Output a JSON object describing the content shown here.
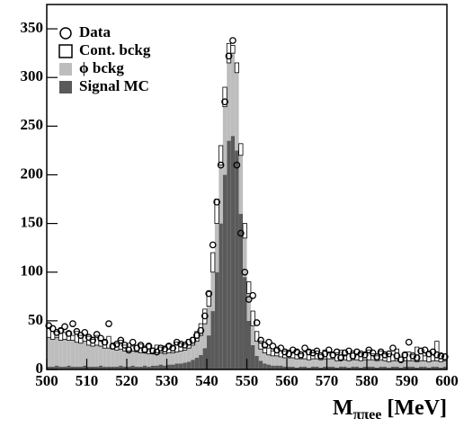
{
  "chart_data": {
    "type": "histogram",
    "x_label": {
      "main": "M",
      "sub": "ππee",
      "unit": "[MeV]"
    },
    "bins": [
      500,
      501,
      502,
      503,
      504,
      505,
      506,
      507,
      508,
      509,
      510,
      511,
      512,
      513,
      514,
      515,
      516,
      517,
      518,
      519,
      520,
      521,
      522,
      523,
      524,
      525,
      526,
      527,
      528,
      529,
      530,
      531,
      532,
      533,
      534,
      535,
      536,
      537,
      538,
      539,
      540,
      541,
      542,
      543,
      544,
      545,
      546,
      547,
      548,
      549,
      550,
      551,
      552,
      553,
      554,
      555,
      556,
      557,
      558,
      559,
      560,
      561,
      562,
      563,
      564,
      565,
      566,
      567,
      568,
      569,
      570,
      571,
      572,
      573,
      574,
      575,
      576,
      577,
      578,
      579,
      580,
      581,
      582,
      583,
      584,
      585,
      586,
      587,
      588,
      589,
      590,
      591,
      592,
      593,
      594,
      595,
      596,
      597,
      598,
      599,
      600
    ],
    "series": [
      {
        "name": "Signal MC",
        "color": "#5a5a5a",
        "style": "stack",
        "values": [
          3,
          3,
          4,
          3,
          3,
          4,
          3,
          3,
          3,
          4,
          3,
          3,
          3,
          4,
          3,
          3,
          3,
          3,
          4,
          3,
          3,
          4,
          3,
          3,
          4,
          3,
          4,
          4,
          5,
          4,
          5,
          5,
          6,
          6,
          7,
          8,
          10,
          12,
          15,
          22,
          35,
          60,
          100,
          150,
          200,
          235,
          240,
          225,
          160,
          95,
          50,
          25,
          14,
          9,
          6,
          5,
          4,
          4,
          4,
          3,
          3,
          3,
          2,
          3,
          3,
          2,
          3,
          3,
          2,
          3,
          3,
          3,
          2,
          3,
          3,
          2,
          3,
          3,
          2,
          3,
          3,
          3,
          2,
          3,
          3,
          2,
          3,
          3,
          2,
          3,
          3,
          3,
          2,
          3,
          3,
          2,
          3,
          3,
          2,
          3
        ]
      },
      {
        "name": "ϕ bckg",
        "color": "#bdbdbd",
        "style": "stack",
        "values": [
          30,
          28,
          29,
          27,
          28,
          26,
          27,
          25,
          24,
          25,
          22,
          21,
          22,
          20,
          19,
          19,
          18,
          17,
          17,
          16,
          16,
          15,
          15,
          14,
          14,
          13,
          13,
          13,
          12,
          12,
          12,
          12,
          12,
          13,
          13,
          14,
          15,
          17,
          20,
          25,
          30,
          40,
          50,
          60,
          70,
          80,
          85,
          80,
          60,
          40,
          28,
          20,
          15,
          12,
          11,
          10,
          10,
          10,
          9,
          9,
          9,
          9,
          9,
          8,
          8,
          8,
          8,
          8,
          8,
          8,
          8,
          8,
          7,
          7,
          7,
          7,
          7,
          7,
          7,
          7,
          7,
          7,
          7,
          7,
          6,
          6,
          6,
          6,
          6,
          6,
          6,
          6,
          6,
          6,
          6,
          6,
          6,
          6,
          6,
          6
        ]
      },
      {
        "name": "Cont. bckg",
        "color": "#ffffff",
        "style": "stack",
        "values": [
          10,
          8,
          6,
          12,
          7,
          9,
          5,
          11,
          8,
          6,
          9,
          7,
          10,
          6,
          8,
          12,
          5,
          7,
          9,
          6,
          8,
          5,
          7,
          9,
          6,
          10,
          5,
          8,
          6,
          7,
          9,
          7,
          10,
          8,
          6,
          9,
          8,
          10,
          12,
          15,
          15,
          20,
          25,
          20,
          20,
          20,
          8,
          10,
          12,
          15,
          12,
          15,
          10,
          8,
          6,
          7,
          5,
          8,
          6,
          7,
          8,
          6,
          9,
          5,
          7,
          10,
          6,
          8,
          5,
          9,
          7,
          6,
          8,
          10,
          5,
          7,
          9,
          6,
          8,
          7,
          10,
          6,
          5,
          9,
          7,
          8,
          6,
          12,
          5,
          8,
          9,
          6,
          15,
          7,
          5,
          10,
          6,
          20,
          8,
          7
        ]
      },
      {
        "name": "Data",
        "color": "#000000",
        "style": "points",
        "values": [
          45,
          42,
          38,
          40,
          44,
          37,
          47,
          39,
          35,
          38,
          33,
          30,
          36,
          32,
          28,
          47,
          24,
          26,
          30,
          25,
          20,
          28,
          22,
          25,
          20,
          24,
          19,
          18,
          22,
          21,
          24,
          22,
          28,
          26,
          25,
          28,
          30,
          35,
          40,
          55,
          78,
          128,
          172,
          210,
          275,
          322,
          338,
          210,
          140,
          100,
          72,
          76,
          48,
          30,
          25,
          28,
          24,
          20,
          22,
          18,
          16,
          20,
          18,
          15,
          22,
          18,
          17,
          19,
          14,
          16,
          20,
          15,
          18,
          12,
          17,
          19,
          14,
          18,
          16,
          15,
          20,
          17,
          13,
          18,
          15,
          16,
          22,
          14,
          10,
          15,
          28,
          14,
          12,
          19,
          20,
          16,
          18,
          15,
          14,
          13
        ]
      }
    ],
    "xlim": [
      500,
      600
    ],
    "ylim": [
      0,
      375
    ],
    "xticks": [
      500,
      510,
      520,
      530,
      540,
      550,
      560,
      570,
      580,
      590,
      600
    ],
    "yticks": [
      0,
      50,
      100,
      150,
      200,
      250,
      300,
      350
    ],
    "legend": "top-left"
  }
}
